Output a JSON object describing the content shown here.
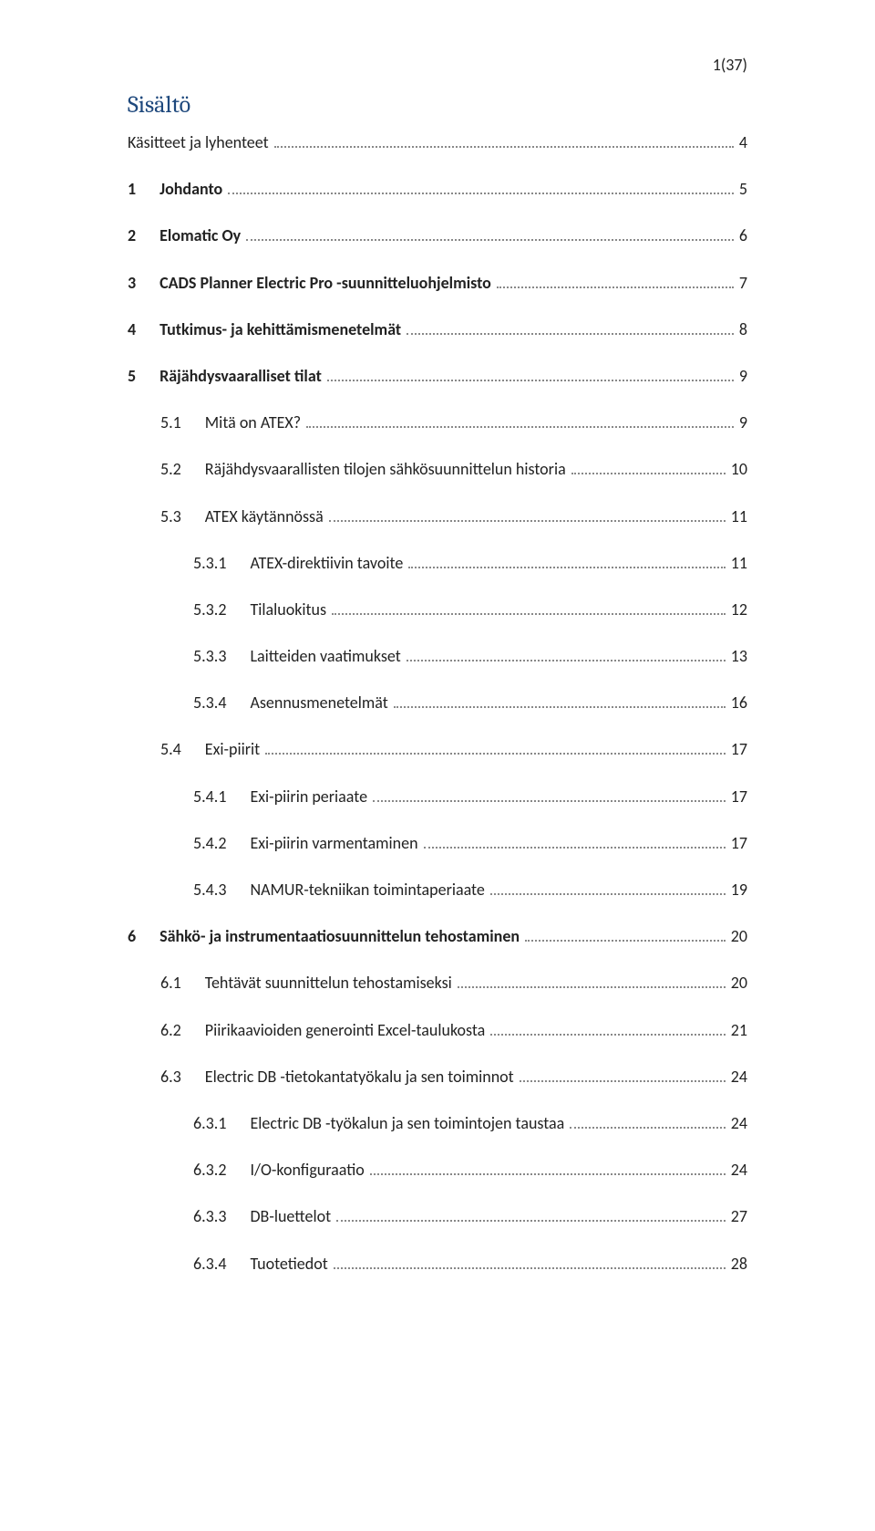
{
  "page_number_label": "1(37)",
  "heading_label": "Sisältö",
  "colors": {
    "heading": "#1f497d",
    "text": "#222222",
    "dot": "#888888",
    "background": "#ffffff"
  },
  "typography": {
    "body_font": "Calibri",
    "heading_font": "Cambria",
    "heading_fontsize_pt": 16,
    "body_fontsize_pt": 12
  },
  "toc": [
    {
      "num": "",
      "label": "Käsitteet ja lyhenteet",
      "page": "4",
      "indent": 0,
      "bold": false
    },
    {
      "num": "1",
      "label": "Johdanto",
      "page": "5",
      "indent": 0,
      "bold": true
    },
    {
      "num": "2",
      "label": "Elomatic Oy",
      "page": "6",
      "indent": 0,
      "bold": true
    },
    {
      "num": "3",
      "label": "CADS Planner Electric Pro -suunnitteluohjelmisto",
      "page": "7",
      "indent": 0,
      "bold": true
    },
    {
      "num": "4",
      "label": "Tutkimus- ja kehittämismenetelmät",
      "page": "8",
      "indent": 0,
      "bold": true
    },
    {
      "num": "5",
      "label": "Räjähdysvaaralliset tilat",
      "page": "9",
      "indent": 0,
      "bold": true
    },
    {
      "num": "5.1",
      "label": "Mitä on ATEX?",
      "page": "9",
      "indent": 1,
      "bold": false
    },
    {
      "num": "5.2",
      "label": "Räjähdysvaarallisten tilojen sähkösuunnittelun historia",
      "page": "10",
      "indent": 1,
      "bold": false
    },
    {
      "num": "5.3",
      "label": "ATEX käytännössä",
      "page": "11",
      "indent": 1,
      "bold": false
    },
    {
      "num": "5.3.1",
      "label": "ATEX-direktiivin tavoite",
      "page": "11",
      "indent": 2,
      "bold": false
    },
    {
      "num": "5.3.2",
      "label": "Tilaluokitus",
      "page": "12",
      "indent": 2,
      "bold": false
    },
    {
      "num": "5.3.3",
      "label": "Laitteiden vaatimukset",
      "page": "13",
      "indent": 2,
      "bold": false
    },
    {
      "num": "5.3.4",
      "label": "Asennusmenetelmät",
      "page": "16",
      "indent": 2,
      "bold": false
    },
    {
      "num": "5.4",
      "label": "Exi-piirit",
      "page": "17",
      "indent": 1,
      "bold": false
    },
    {
      "num": "5.4.1",
      "label": "Exi-piirin periaate",
      "page": "17",
      "indent": 2,
      "bold": false
    },
    {
      "num": "5.4.2",
      "label": "Exi-piirin varmentaminen",
      "page": "17",
      "indent": 2,
      "bold": false
    },
    {
      "num": "5.4.3",
      "label": "NAMUR-tekniikan toimintaperiaate",
      "page": "19",
      "indent": 2,
      "bold": false
    },
    {
      "num": "6",
      "label": "Sähkö- ja instrumentaatiosuunnittelun tehostaminen",
      "page": "20",
      "indent": 0,
      "bold": true
    },
    {
      "num": "6.1",
      "label": "Tehtävät suunnittelun tehostamiseksi",
      "page": "20",
      "indent": 1,
      "bold": false
    },
    {
      "num": "6.2",
      "label": "Piirikaavioiden generointi Excel-taulukosta",
      "page": "21",
      "indent": 1,
      "bold": false
    },
    {
      "num": "6.3",
      "label": "Electric DB -tietokantatyökalu ja sen toiminnot",
      "page": "24",
      "indent": 1,
      "bold": false
    },
    {
      "num": "6.3.1",
      "label": "Electric DB -työkalun ja sen toimintojen taustaa",
      "page": "24",
      "indent": 2,
      "bold": false
    },
    {
      "num": "6.3.2",
      "label": "I/O-konfiguraatio",
      "page": "24",
      "indent": 2,
      "bold": false
    },
    {
      "num": "6.3.3",
      "label": "DB-luettelot",
      "page": "27",
      "indent": 2,
      "bold": false
    },
    {
      "num": "6.3.4",
      "label": "Tuotetiedot",
      "page": "28",
      "indent": 2,
      "bold": false
    }
  ]
}
